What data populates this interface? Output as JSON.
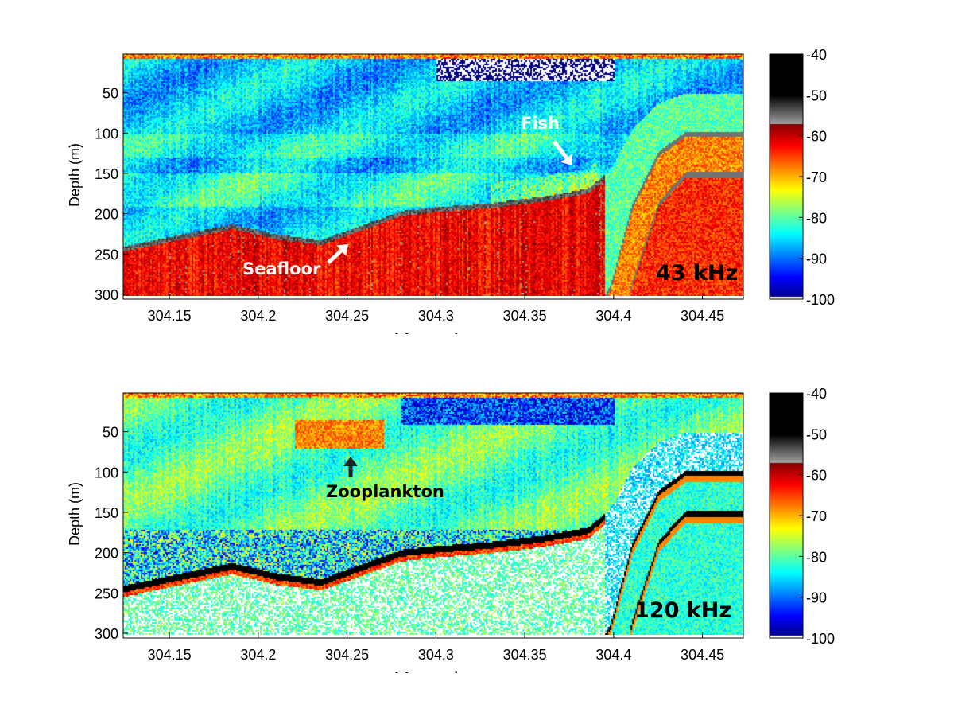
{
  "chart_data": [
    {
      "type": "heatmap",
      "panel_label": "43 kHz",
      "xlabel": "Year day",
      "ylabel": "Depth (m)",
      "xlim": [
        304.124,
        304.473
      ],
      "ylim": [
        302,
        2
      ],
      "xticks": [
        "304.15",
        "304.2",
        "304.25",
        "304.3",
        "304.35",
        "304.4",
        "304.45"
      ],
      "yticks": [
        "50",
        "100",
        "150",
        "200",
        "250",
        "300"
      ],
      "colorbar": {
        "range": [
          -100,
          -40
        ],
        "ticks": [
          "-40",
          "-50",
          "-60",
          "-70",
          "-80",
          "-90",
          "-100"
        ],
        "colormap": "jet below -57, grayscale to black above"
      },
      "seafloor_depth": {
        "x": [
          304.124,
          304.15,
          304.185,
          304.21,
          304.235,
          304.26,
          304.28,
          304.3,
          304.33,
          304.36,
          304.385,
          304.398,
          304.41,
          304.425,
          304.44,
          304.473
        ],
        "y": [
          240,
          228,
          212,
          225,
          232,
          212,
          196,
          191,
          186,
          178,
          168,
          145,
          95,
          62,
          50,
          50
        ]
      },
      "annotations": [
        {
          "text": "Fish",
          "color": "#ffffff"
        },
        {
          "text": "Seafloor",
          "color": "#ffffff"
        }
      ]
    },
    {
      "type": "heatmap",
      "panel_label": "120 kHz",
      "xlabel": "Year day",
      "ylabel": "Depth (m)",
      "xlim": [
        304.124,
        304.473
      ],
      "ylim": [
        302,
        2
      ],
      "xticks": [
        "304.15",
        "304.2",
        "304.25",
        "304.3",
        "304.35",
        "304.4",
        "304.45"
      ],
      "yticks": [
        "50",
        "100",
        "150",
        "200",
        "250",
        "300"
      ],
      "colorbar": {
        "range": [
          -100,
          -40
        ],
        "ticks": [
          "-40",
          "-50",
          "-60",
          "-70",
          "-80",
          "-90",
          "-100"
        ],
        "colormap": "jet below -57, grayscale to black above"
      },
      "seafloor_depth": {
        "x": [
          304.124,
          304.15,
          304.185,
          304.21,
          304.235,
          304.26,
          304.28,
          304.3,
          304.33,
          304.36,
          304.385,
          304.398,
          304.41,
          304.425,
          304.44,
          304.473
        ],
        "y": [
          240,
          228,
          212,
          225,
          232,
          212,
          196,
          191,
          186,
          178,
          168,
          145,
          95,
          62,
          50,
          50
        ]
      },
      "annotations": [
        {
          "text": "Zooplankton",
          "color": "#000000"
        }
      ]
    }
  ]
}
